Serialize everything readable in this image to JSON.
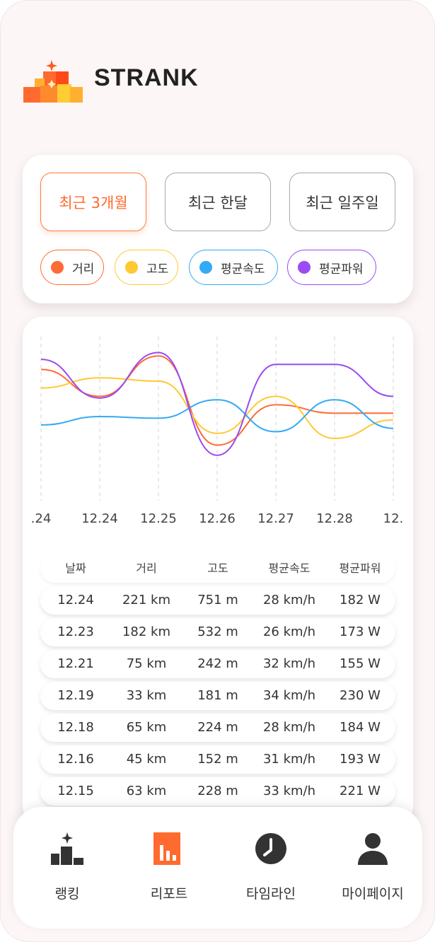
{
  "app": {
    "brand": "STRANK"
  },
  "filters": {
    "periods": [
      {
        "label": "최근 3개월",
        "active": true
      },
      {
        "label": "최근 한달",
        "active": false
      },
      {
        "label": "최근 일주일",
        "active": false
      }
    ],
    "metrics": [
      {
        "label": "거리",
        "color": "#ff6b35"
      },
      {
        "label": "고도",
        "color": "#ffc933"
      },
      {
        "label": "평균속도",
        "color": "#33aaf5"
      },
      {
        "label": "평균파워",
        "color": "#9a4bf2"
      }
    ]
  },
  "chart_data": {
    "type": "line",
    "categories": [
      ".24",
      "12.24",
      "12.25",
      "12.26",
      "12.27",
      "12.28",
      "12."
    ],
    "x_index": [
      0,
      1,
      2,
      3,
      4,
      5,
      6
    ],
    "ylim": [
      0,
      1
    ],
    "series": [
      {
        "name": "거리",
        "color": "#ff6b35",
        "values": [
          0.78,
          0.62,
          0.86,
          0.33,
          0.57,
          0.52,
          0.52
        ]
      },
      {
        "name": "고도",
        "color": "#ffc933",
        "values": [
          0.67,
          0.73,
          0.71,
          0.4,
          0.62,
          0.37,
          0.48
        ]
      },
      {
        "name": "평균속도",
        "color": "#33aaf5",
        "values": [
          0.45,
          0.5,
          0.49,
          0.6,
          0.41,
          0.6,
          0.43
        ]
      },
      {
        "name": "평균파워",
        "color": "#9a4bf2",
        "values": [
          0.84,
          0.61,
          0.88,
          0.27,
          0.81,
          0.81,
          0.62
        ]
      }
    ]
  },
  "table": {
    "headers": [
      "날짜",
      "거리",
      "고도",
      "평균속도",
      "평균파워"
    ],
    "rows": [
      [
        "12.24",
        "221 km",
        "751 m",
        "28 km/h",
        "182 W"
      ],
      [
        "12.23",
        "182 km",
        "532 m",
        "26 km/h",
        "173 W"
      ],
      [
        "12.21",
        "75 km",
        "242 m",
        "32 km/h",
        "155 W"
      ],
      [
        "12.19",
        "33 km",
        "181 m",
        "34 km/h",
        "230 W"
      ],
      [
        "12.18",
        "65 km",
        "224 m",
        "28 km/h",
        "184 W"
      ],
      [
        "12.16",
        "45 km",
        "152 m",
        "31 km/h",
        "193 W"
      ],
      [
        "12.15",
        "63 km",
        "228 m",
        "33 km/h",
        "221 W"
      ]
    ]
  },
  "nav": {
    "items": [
      {
        "label": "랭킹",
        "icon": "ranking-icon",
        "active": false
      },
      {
        "label": "리포트",
        "icon": "report-icon",
        "active": true
      },
      {
        "label": "타임라인",
        "icon": "clock-icon",
        "active": false
      },
      {
        "label": "마이페이지",
        "icon": "person-icon",
        "active": false
      }
    ]
  },
  "colors": {
    "accent": "#ff6a2e",
    "icon_dark": "#333333"
  }
}
